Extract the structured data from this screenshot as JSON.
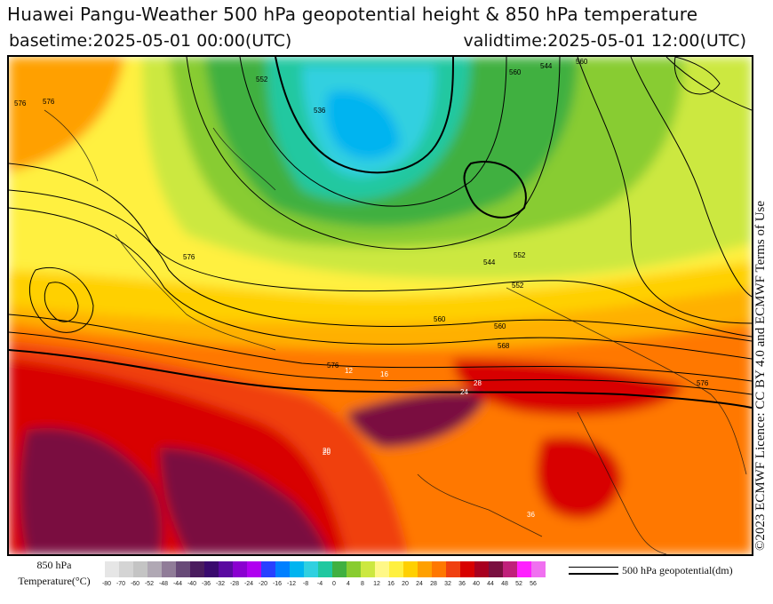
{
  "header": {
    "title": "Huawei Pangu-Weather 500 hPa geopotential height & 850 hPa temperature",
    "basetime": "basetime:2025-05-01 00:00(UTC)",
    "validtime": "validtime:2025-05-01 12:00(UTC)"
  },
  "copyright": "©2023 ECMWF Licence: CC BY 4.0 and ECMWF Terms of Use",
  "legend": {
    "temperature_label_line1": "850 hPa",
    "temperature_label_line2": "Temperature(°C)",
    "ticks": [
      "-80",
      "-70",
      "-60",
      "-52",
      "-48",
      "-44",
      "-40",
      "-36",
      "-32",
      "-28",
      "-24",
      "-20",
      "-16",
      "-12",
      "-8",
      "-4",
      "0",
      "4",
      "8",
      "12",
      "16",
      "20",
      "24",
      "28",
      "32",
      "36",
      "40",
      "44",
      "48",
      "52",
      "56"
    ],
    "colors": [
      "#e6e6e6",
      "#d4d4d4",
      "#c4c4c4",
      "#b0a8b4",
      "#907c98",
      "#684a78",
      "#4a1c5e",
      "#3a0a6e",
      "#5a0aa0",
      "#8a00d0",
      "#b000f0",
      "#2840ff",
      "#0080ff",
      "#00b4f0",
      "#30d0e0",
      "#20c8a0",
      "#40b040",
      "#88cc30",
      "#cce840",
      "#fff888",
      "#fff040",
      "#ffd000",
      "#ffa000",
      "#ff7800",
      "#f04010",
      "#d80000",
      "#a80020",
      "#7a1040",
      "#c0207a",
      "#ff20ff",
      "#f070f0",
      "#f0a0f0",
      "#f0c8f0",
      "#e8e0ec"
    ],
    "line_label": "500 hPa geopotential(dm)"
  },
  "map_labels": {
    "contours": [
      "576",
      "576",
      "552",
      "544",
      "552",
      "560",
      "568",
      "576",
      "560",
      "576",
      "536",
      "552",
      "544",
      "560",
      "576",
      "560"
    ],
    "temperatures": [
      "12",
      "16",
      "20",
      "24",
      "28",
      "20",
      "36"
    ]
  }
}
